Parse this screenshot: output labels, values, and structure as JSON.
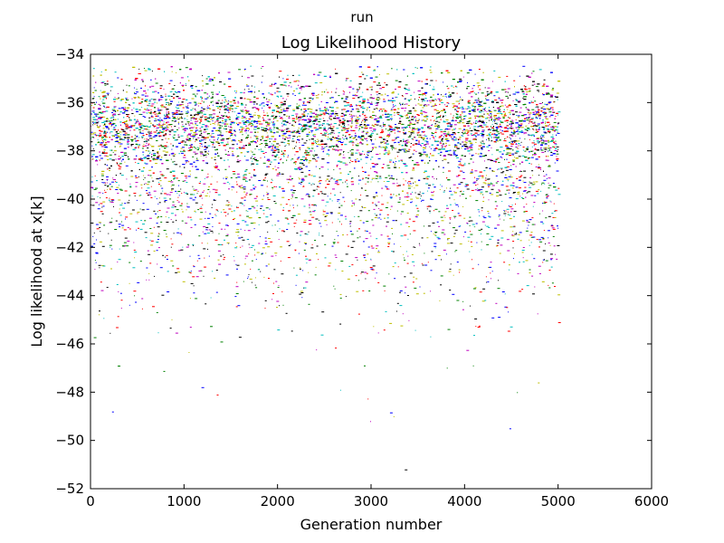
{
  "figure": {
    "suptitle": "run"
  },
  "chart_data": {
    "type": "scatter",
    "title": "Log Likelihood History",
    "xlabel": "Generation number",
    "ylabel": "Log likelihood at x[k]",
    "xlim": [
      0,
      6000
    ],
    "ylim": [
      -52,
      -34
    ],
    "xticks": [
      0,
      1000,
      2000,
      3000,
      4000,
      5000,
      6000
    ],
    "yticks": [
      -34,
      -36,
      -38,
      -40,
      -42,
      -44,
      -46,
      -48,
      -50,
      -52
    ],
    "xtick_labels": [
      "0",
      "1000",
      "2000",
      "3000",
      "4000",
      "5000",
      "6000"
    ],
    "ytick_labels": [
      "−34",
      "−36",
      "−38",
      "−40",
      "−42",
      "−44",
      "−46",
      "−48",
      "−50",
      "−52"
    ],
    "grid": false,
    "marker": "pixel",
    "series_colors": [
      "#0000ff",
      "#008000",
      "#ff0000",
      "#00bfbf",
      "#bf00bf",
      "#bfbf00",
      "#000000"
    ],
    "generation_range": [
      0,
      5000
    ],
    "dense_band": [
      -39,
      -35
    ],
    "max_value_approx": -34.5,
    "notable_outliers": [
      {
        "x": 230,
        "y": -48.8
      },
      {
        "x": 290,
        "y": -46.9
      },
      {
        "x": 1350,
        "y": -48.1
      },
      {
        "x": 2670,
        "y": -47.9
      },
      {
        "x": 2990,
        "y": -49.2
      },
      {
        "x": 3240,
        "y": -49.0
      },
      {
        "x": 3360,
        "y": -51.2
      },
      {
        "x": 4480,
        "y": -49.5
      },
      {
        "x": 4560,
        "y": -48.0
      },
      {
        "x": 5000,
        "y": -45.1
      }
    ]
  }
}
